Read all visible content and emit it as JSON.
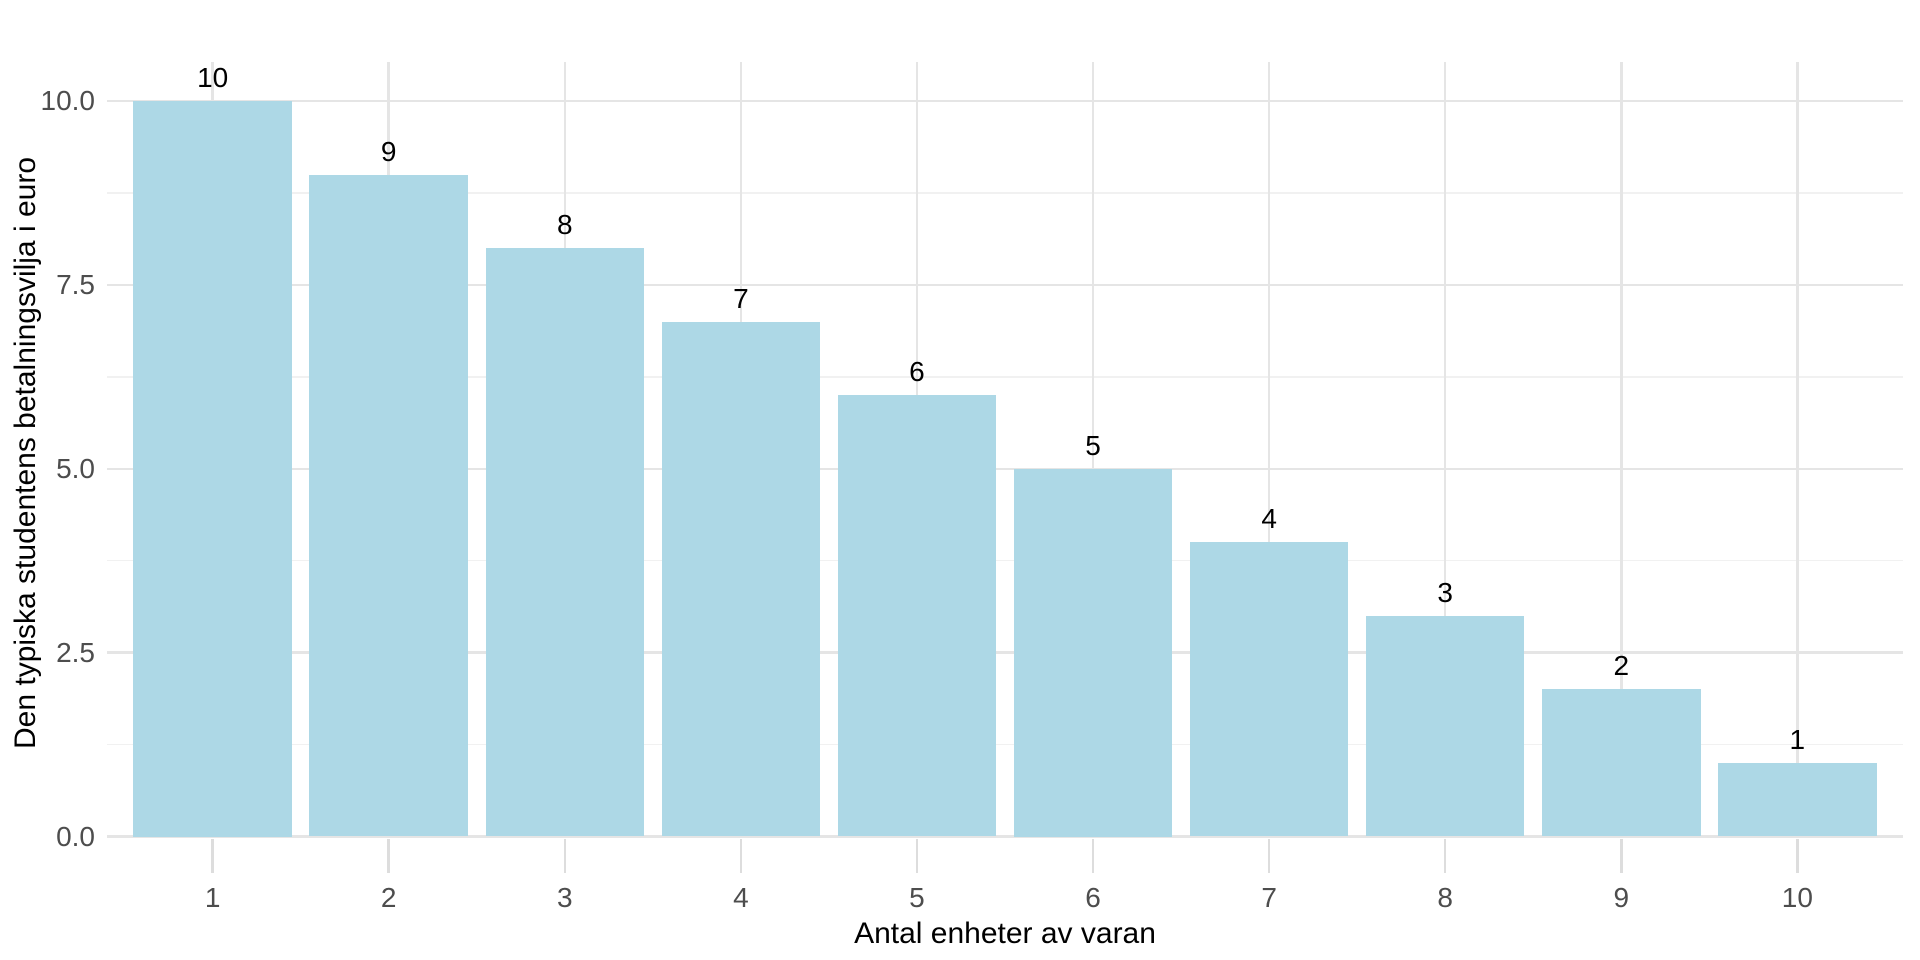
{
  "chart_data": {
    "type": "bar",
    "title": "",
    "xlabel": "Antal enheter av varan",
    "ylabel": "Den typiska studentens betalningsvilja i euro",
    "categories": [
      "1",
      "2",
      "3",
      "4",
      "5",
      "6",
      "7",
      "8",
      "9",
      "10"
    ],
    "values": [
      10,
      9,
      8,
      7,
      6,
      5,
      4,
      3,
      2,
      1
    ],
    "bar_labels": [
      "10",
      "9",
      "8",
      "7",
      "6",
      "5",
      "4",
      "3",
      "2",
      "1"
    ],
    "ylim": [
      0,
      10
    ],
    "yticks": [
      {
        "value": 0,
        "label": "0.0"
      },
      {
        "value": 2.5,
        "label": "2.5"
      },
      {
        "value": 5,
        "label": "5.0"
      },
      {
        "value": 7.5,
        "label": "7.5"
      },
      {
        "value": 10,
        "label": "10.0"
      }
    ],
    "yticks_minor": [
      1.25,
      3.75,
      6.25,
      8.75
    ],
    "grid": "major and minor horizontal, major vertical at each category",
    "legend": "none",
    "colors": {
      "background": "#FFFFFF",
      "bar_fill": "#ADD8E6",
      "grid_major": "#E5E5E5",
      "grid_minor": "#F1F1F1",
      "tick_mark": "#DDDDDD",
      "tick_label": "#4D4D4D",
      "axis_title": "#000000",
      "bar_label": "#000000"
    }
  }
}
